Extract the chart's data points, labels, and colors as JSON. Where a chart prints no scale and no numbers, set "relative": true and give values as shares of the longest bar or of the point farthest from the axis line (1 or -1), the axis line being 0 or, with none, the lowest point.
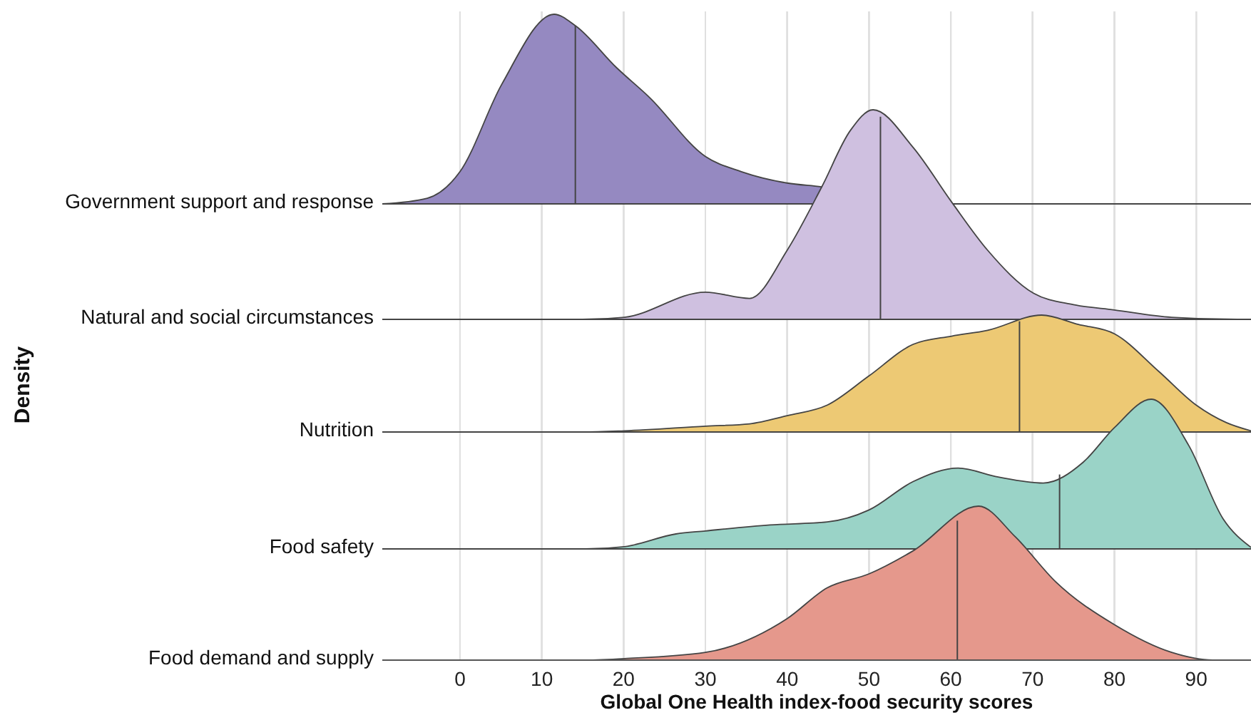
{
  "chart_data": [
    {
      "type": "area",
      "relative": true,
      "xlim": [
        -9.5,
        96.7
      ],
      "xticks": [
        0,
        10,
        20,
        30,
        40,
        50,
        60,
        70,
        80,
        90
      ],
      "grid": "x",
      "tick_labels": false,
      "series": [
        {
          "name": "Government support and response",
          "color": "#9589c1",
          "x": [
            -9.5,
            -4,
            0,
            5.1,
            11.5,
            14.1,
            19.1,
            23.2,
            30,
            34.4,
            40,
            44.2,
            55,
            96.7
          ],
          "values": [
            0,
            0.03,
            0.17,
            0.63,
            1,
            0.94,
            0.72,
            0.56,
            0.25,
            0.17,
            0.11,
            0.09,
            0,
            0
          ]
        }
      ],
      "ref_lines": [
        {
          "axis": "x",
          "value": 14.1
        }
      ]
    },
    {
      "type": "area",
      "relative": true,
      "xlim": [
        -9.5,
        96.7
      ],
      "xticks": [
        0,
        10,
        20,
        30,
        40,
        50,
        60,
        70,
        80,
        90
      ],
      "grid": "x",
      "tick_labels": false,
      "series": [
        {
          "name": "Natural and social circumstances",
          "color": "#cfc0e0",
          "x": [
            -9.5,
            15,
            20.1,
            30,
            35.4,
            40,
            44.2,
            47.7,
            50.5,
            55.4,
            60.1,
            64.5,
            70.1,
            75,
            80,
            87,
            95,
            96.7
          ],
          "values": [
            0,
            0,
            0.01,
            0.13,
            0.1,
            0.33,
            0.63,
            0.9,
            1,
            0.82,
            0.56,
            0.33,
            0.125,
            0.07,
            0.045,
            0.01,
            0,
            0
          ]
        }
      ],
      "ref_lines": [
        {
          "axis": "x",
          "value": 51.4
        }
      ]
    },
    {
      "type": "area",
      "relative": true,
      "xlim": [
        -9.5,
        96.7
      ],
      "xticks": [
        0,
        10,
        20,
        30,
        40,
        50,
        60,
        70,
        80,
        90
      ],
      "grid": "x",
      "tick_labels": false,
      "ylabel": "Density",
      "series": [
        {
          "name": "Nutrition",
          "color": "#edc974",
          "x": [
            -9.5,
            15,
            20.1,
            30,
            35.4,
            40,
            44.9,
            50,
            55.4,
            60.1,
            64.5,
            71.1,
            75.6,
            80,
            85.4,
            90,
            93.7,
            96.7
          ],
          "values": [
            0,
            0,
            0.01,
            0.05,
            0.07,
            0.14,
            0.23,
            0.48,
            0.75,
            0.82,
            0.87,
            1,
            0.92,
            0.84,
            0.52,
            0.23,
            0.08,
            0.01
          ]
        }
      ],
      "ref_lines": [
        {
          "axis": "x",
          "value": 68.4
        }
      ]
    },
    {
      "type": "area",
      "relative": true,
      "xlim": [
        -9.5,
        96.7
      ],
      "xticks": [
        0,
        10,
        20,
        30,
        40,
        50,
        60,
        70,
        80,
        90
      ],
      "grid": "x",
      "tick_labels": false,
      "series": [
        {
          "name": "Food safety",
          "color": "#9ad3c7",
          "x": [
            -9.5,
            15.4,
            20.1,
            26.4,
            30,
            37.9,
            44.9,
            50,
            55.4,
            60.9,
            65.8,
            71.3,
            76.2,
            80,
            84.5,
            89.1,
            93.3,
            96.7
          ],
          "values": [
            0,
            0,
            0.015,
            0.1,
            0.12,
            0.16,
            0.18,
            0.26,
            0.45,
            0.54,
            0.48,
            0.44,
            0.58,
            0.81,
            1,
            0.69,
            0.2,
            0.01
          ]
        }
      ],
      "ref_lines": [
        {
          "axis": "x",
          "value": 73.3
        }
      ]
    },
    {
      "type": "area",
      "relative": true,
      "xlim": [
        -9.5,
        96.7
      ],
      "xticks": [
        0,
        10,
        20,
        30,
        40,
        50,
        60,
        70,
        80,
        90
      ],
      "grid": "x",
      "tick_labels": "x",
      "xlabel": "Global One Health index-food security scores",
      "series": [
        {
          "name": "Food demand and supply",
          "color": "#e5988c",
          "x": [
            -9.5,
            15,
            20.1,
            30,
            40,
            44.9,
            50,
            55.4,
            63.4,
            67.9,
            72.8,
            80,
            87,
            92,
            96.7
          ],
          "values": [
            0,
            0,
            0.01,
            0.05,
            0.27,
            0.47,
            0.56,
            0.71,
            1,
            0.8,
            0.51,
            0.23,
            0.05,
            0,
            0
          ]
        }
      ],
      "ref_lines": [
        {
          "axis": "x",
          "value": 60.8
        }
      ]
    }
  ]
}
